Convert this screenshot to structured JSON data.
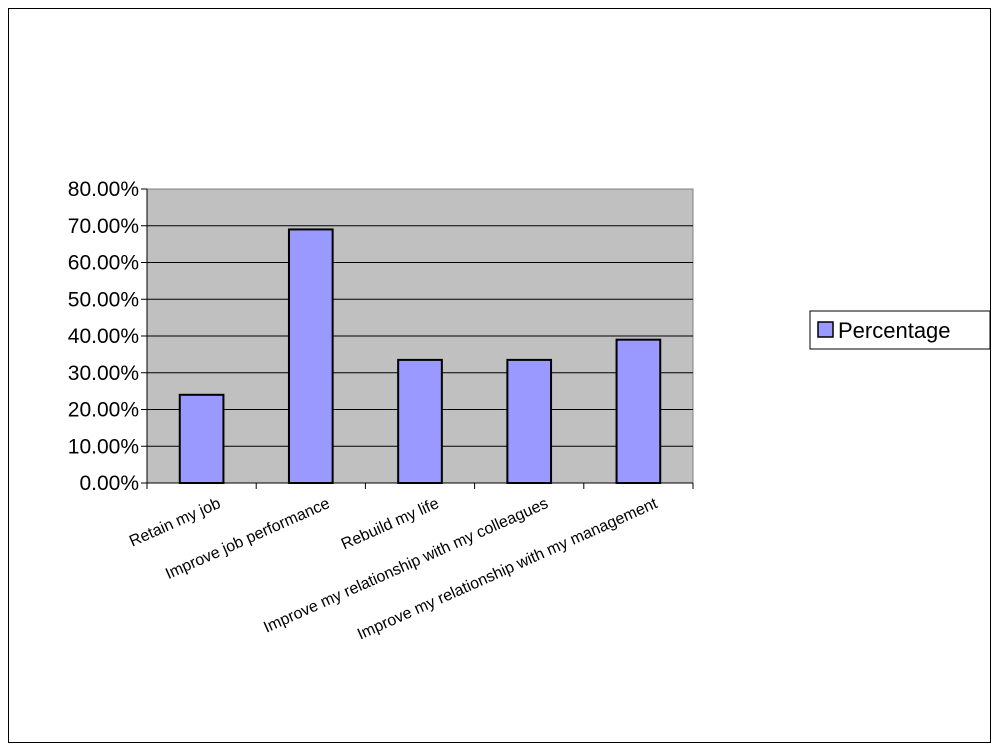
{
  "chart_data": {
    "type": "bar",
    "categories": [
      "Retain my job",
      "Improve job performance",
      "Rebuild my life",
      "Improve my relationship with my colleagues",
      "Improve my relationship with my management"
    ],
    "series": [
      {
        "name": "Percentage",
        "values": [
          0.24,
          0.69,
          0.335,
          0.335,
          0.39
        ]
      }
    ],
    "ylim": [
      0,
      0.8
    ],
    "yticks": [
      0,
      0.1,
      0.2,
      0.3,
      0.4,
      0.5,
      0.6,
      0.7,
      0.8
    ],
    "ytick_labels": [
      "0.00%",
      "10.00%",
      "20.00%",
      "30.00%",
      "40.00%",
      "50.00%",
      "60.00%",
      "70.00%",
      "80.00%"
    ],
    "grid": true,
    "legend_position": "right",
    "plot_background": "#c0c0c0",
    "bar_color": "#9999ff",
    "title": "",
    "xlabel": "",
    "ylabel": ""
  }
}
